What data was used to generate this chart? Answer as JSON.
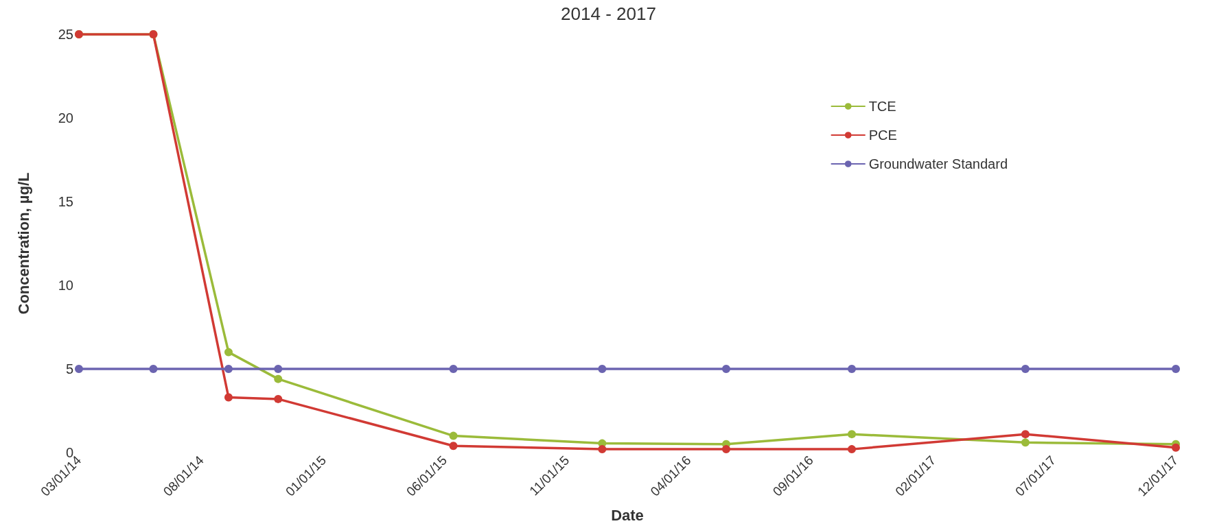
{
  "chart_data": {
    "type": "line",
    "title": "2014 - 2017",
    "xlabel": "Date",
    "ylabel": "Concentration, µg/L",
    "x": [
      "2014-03-01",
      "2014-06-02",
      "2014-09-04",
      "2014-11-05",
      "2015-06-12",
      "2015-12-15",
      "2016-05-18",
      "2016-10-22",
      "2017-05-27",
      "2017-12-01"
    ],
    "series": [
      {
        "name": "TCE",
        "color": "#9bbb3a",
        "values": [
          25,
          25,
          6,
          4.4,
          1,
          0.55,
          0.5,
          1.1,
          0.6,
          0.5
        ]
      },
      {
        "name": "PCE",
        "color": "#d13a34",
        "values": [
          25,
          25,
          3.3,
          3.2,
          0.4,
          0.2,
          0.2,
          0.2,
          1.1,
          0.3
        ]
      },
      {
        "name": "Groundwater Standard",
        "color": "#6b64b0",
        "values": [
          5,
          5,
          5,
          5,
          5,
          5,
          5,
          5,
          5,
          5
        ]
      }
    ],
    "xlim": [
      "2014-03-01",
      "2017-12-01"
    ],
    "xticks": [
      {
        "value": "2014-03-01",
        "label": "03/01/14"
      },
      {
        "value": "2014-08-01",
        "label": "08/01/14"
      },
      {
        "value": "2015-01-01",
        "label": "01/01/15"
      },
      {
        "value": "2015-06-01",
        "label": "06/01/15"
      },
      {
        "value": "2015-11-01",
        "label": "11/01/15"
      },
      {
        "value": "2016-04-01",
        "label": "04/01/16"
      },
      {
        "value": "2016-09-01",
        "label": "09/01/16"
      },
      {
        "value": "2017-02-01",
        "label": "02/01/17"
      },
      {
        "value": "2017-07-01",
        "label": "07/01/17"
      },
      {
        "value": "2017-12-01",
        "label": "12/01/17"
      }
    ],
    "ylim": [
      0,
      25
    ],
    "yticks": [
      0,
      5,
      10,
      15,
      20,
      25
    ],
    "grid": false,
    "legend": "right",
    "marker": "circle",
    "line_style": "solid"
  }
}
